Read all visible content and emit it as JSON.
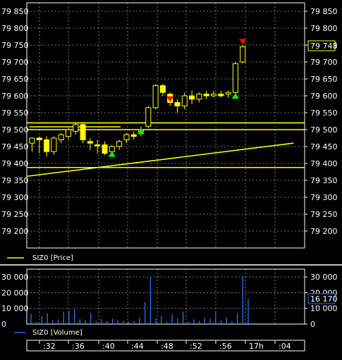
{
  "chart_data": [
    {
      "type": "candlestick",
      "legend": "SIZ0 [Price]",
      "ylim": [
        79150,
        79875
      ],
      "y_ticks": [
        79850,
        79800,
        79750,
        79700,
        79650,
        79600,
        79550,
        79500,
        79450,
        79400,
        79350,
        79300,
        79250,
        79200
      ],
      "y_tick_labels": [
        "79 850",
        "79 800",
        "79 750",
        "79 700",
        "79 650",
        "79 600",
        "79 550",
        "79 500",
        "79 450",
        "79 400",
        "79 350",
        "79 300",
        "79 250",
        "79 200"
      ],
      "last_value": 79748,
      "last_value_label": "79 748",
      "colors": {
        "up": "#ffff00",
        "down": "#ffff00",
        "line": "#ffff00",
        "buy_marker": "#00ff00",
        "sell_marker": "#ff0000",
        "grid": "#ffffff"
      },
      "candles": [
        {
          "o": 79460,
          "h": 79475,
          "l": 79435,
          "c": 79475,
          "up": true
        },
        {
          "o": 79475,
          "h": 79480,
          "l": 79430,
          "c": 79470,
          "up": false
        },
        {
          "o": 79470,
          "h": 79480,
          "l": 79420,
          "c": 79435,
          "up": false
        },
        {
          "o": 79435,
          "h": 79480,
          "l": 79425,
          "c": 79475,
          "up": true
        },
        {
          "o": 79470,
          "h": 79490,
          "l": 79460,
          "c": 79485,
          "up": true
        },
        {
          "o": 79480,
          "h": 79505,
          "l": 79470,
          "c": 79500,
          "up": true
        },
        {
          "o": 79495,
          "h": 79520,
          "l": 79485,
          "c": 79515,
          "up": true
        },
        {
          "o": 79515,
          "h": 79520,
          "l": 79460,
          "c": 79470,
          "up": false
        },
        {
          "o": 79465,
          "h": 79475,
          "l": 79440,
          "c": 79460,
          "up": false
        },
        {
          "o": 79455,
          "h": 79470,
          "l": 79430,
          "c": 79455,
          "up": false
        },
        {
          "o": 79455,
          "h": 79465,
          "l": 79425,
          "c": 79430,
          "up": false
        },
        {
          "o": 79435,
          "h": 79455,
          "l": 79430,
          "c": 79450,
          "up": true
        },
        {
          "o": 79450,
          "h": 79470,
          "l": 79440,
          "c": 79465,
          "up": true
        },
        {
          "o": 79470,
          "h": 79490,
          "l": 79460,
          "c": 79485,
          "up": true
        },
        {
          "o": 79485,
          "h": 79495,
          "l": 79470,
          "c": 79480,
          "up": false
        },
        {
          "o": 79495,
          "h": 79510,
          "l": 79480,
          "c": 79500,
          "up": true
        },
        {
          "o": 79510,
          "h": 79570,
          "l": 79505,
          "c": 79565,
          "up": true
        },
        {
          "o": 79565,
          "h": 79635,
          "l": 79560,
          "c": 79630,
          "up": true
        },
        {
          "o": 79630,
          "h": 79635,
          "l": 79600,
          "c": 79610,
          "up": false
        },
        {
          "o": 79605,
          "h": 79610,
          "l": 79570,
          "c": 79580,
          "up": false
        },
        {
          "o": 79580,
          "h": 79590,
          "l": 79550,
          "c": 79570,
          "up": false
        },
        {
          "o": 79570,
          "h": 79610,
          "l": 79560,
          "c": 79600,
          "up": true
        },
        {
          "o": 79600,
          "h": 79615,
          "l": 79575,
          "c": 79590,
          "up": false
        },
        {
          "o": 79590,
          "h": 79610,
          "l": 79580,
          "c": 79605,
          "up": true
        },
        {
          "o": 79605,
          "h": 79615,
          "l": 79590,
          "c": 79600,
          "up": false
        },
        {
          "o": 79600,
          "h": 79615,
          "l": 79595,
          "c": 79605,
          "up": true
        },
        {
          "o": 79605,
          "h": 79615,
          "l": 79595,
          "c": 79600,
          "up": false
        },
        {
          "o": 79605,
          "h": 79615,
          "l": 79595,
          "c": 79610,
          "up": true
        },
        {
          "o": 79610,
          "h": 79700,
          "l": 79605,
          "c": 79695,
          "up": true
        },
        {
          "o": 79700,
          "h": 79750,
          "l": 79695,
          "c": 79745,
          "up": true
        }
      ],
      "markers": [
        {
          "candle": 11,
          "price": 79428,
          "kind": "buy"
        },
        {
          "candle": 15,
          "price": 79495,
          "kind": "buy"
        },
        {
          "candle": 19,
          "price": 79590,
          "kind": "sell"
        },
        {
          "candle": 28,
          "price": 79600,
          "kind": "buy"
        },
        {
          "candle": 29,
          "price": 79760,
          "kind": "sell"
        }
      ],
      "hlines": [
        79520,
        79500,
        79388
      ],
      "hline_short": {
        "price": 79500,
        "from_candle": 0,
        "to_candle": 12
      },
      "trendline": {
        "from_candle": -1,
        "from_price": 79362,
        "to_candle": 36,
        "to_price": 79460
      }
    },
    {
      "type": "bar",
      "legend": "SIZ0 [Volume]",
      "ylim": [
        0,
        35000
      ],
      "y_ticks": [
        30000,
        20000,
        10000,
        0
      ],
      "y_tick_labels": [
        "30 000",
        "20 000",
        "10 000",
        "0"
      ],
      "last_value": 16170,
      "last_value_label": "16 170",
      "colors": {
        "bar": "#2f6fff"
      },
      "values": [
        6500,
        1500,
        5000,
        7000,
        2500,
        3000,
        8000,
        8500,
        9500,
        3000,
        2500,
        7000,
        2000,
        3000,
        2000,
        3500,
        2500,
        2000,
        1500,
        2000,
        4000,
        14000,
        30000,
        3500,
        5000,
        1500,
        6000,
        3500,
        8000,
        1500,
        3000,
        2000,
        4000,
        3500,
        7500,
        2500,
        4000,
        2000,
        7000,
        30500,
        16170
      ]
    }
  ],
  "time_axis": {
    "labels": [
      ":32",
      ":36",
      ":40",
      ":44",
      ":48",
      ":52",
      ":56",
      "17h",
      ":04"
    ]
  }
}
